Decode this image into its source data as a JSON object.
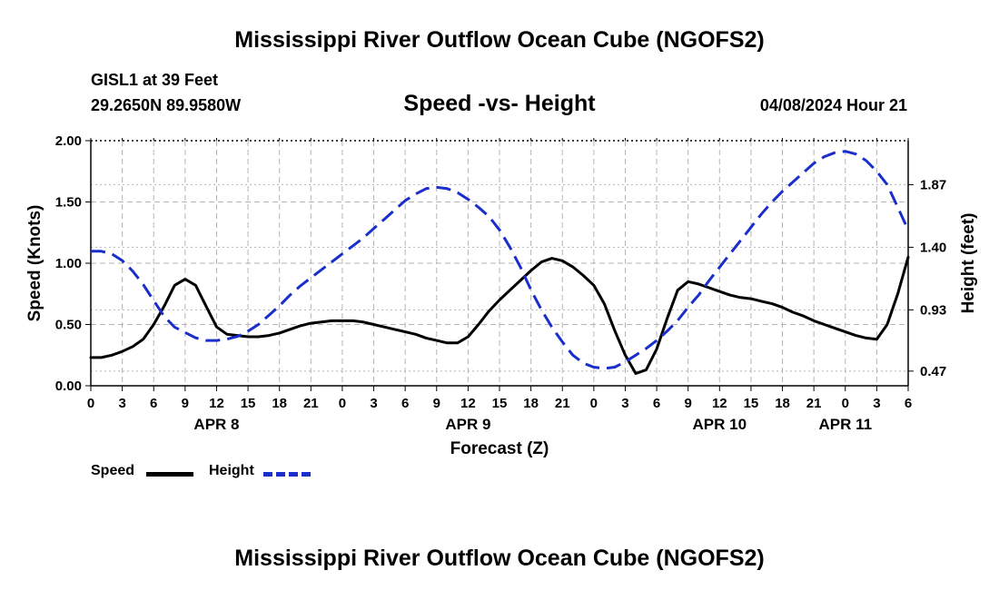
{
  "header": {
    "title": "Mississippi River Outflow Ocean Cube (NGOFS2)",
    "station": "GISL1 at 39 Feet",
    "coords": "29.2650N  89.9580W",
    "subtitle": "Speed -vs- Height",
    "datetime": "04/08/2024 Hour 21"
  },
  "footer": {
    "title": "Mississippi River Outflow Ocean Cube (NGOFS2)"
  },
  "legend": {
    "speed_label": "Speed",
    "height_label": "Height"
  },
  "colors": {
    "speed": "#000000",
    "height": "#1a2ecc",
    "grid": "#b4b4b4"
  },
  "chart_data": {
    "type": "line",
    "title": "Speed -vs- Height",
    "xlabel": "Forecast (Z)",
    "ylabel": "Speed (Knots)",
    "y2label": "Height (feet)",
    "x_hours_range": [
      0,
      78
    ],
    "ylim": [
      0,
      2.0
    ],
    "y_ticks": [
      "0.00",
      "0.50",
      "1.00",
      "1.50",
      "2.00"
    ],
    "y2lim": [
      0.36,
      2.2
    ],
    "y2_ticks": [
      "0.47",
      "0.93",
      "1.40",
      "1.87"
    ],
    "y2_tick_values": [
      0.47,
      0.93,
      1.4,
      1.87
    ],
    "x_tick_labels": [
      "0",
      "3",
      "6",
      "9",
      "12",
      "15",
      "18",
      "21",
      "0",
      "3",
      "6",
      "9",
      "12",
      "15",
      "18",
      "21",
      "0",
      "3",
      "6",
      "9",
      "12",
      "15",
      "18",
      "21",
      "0",
      "3",
      "6"
    ],
    "day_labels": [
      {
        "label": "APR 8",
        "hour": 12
      },
      {
        "label": "APR 9",
        "hour": 36
      },
      {
        "label": "APR 10",
        "hour": 60
      },
      {
        "label": "APR 11",
        "hour": 72
      }
    ],
    "series": [
      {
        "name": "Speed",
        "axis": "left",
        "x": [
          0,
          1,
          2,
          3,
          4,
          5,
          6,
          7,
          8,
          9,
          10,
          11,
          12,
          13,
          14,
          15,
          16,
          17,
          18,
          19,
          20,
          21,
          22,
          23,
          24,
          25,
          26,
          27,
          28,
          29,
          30,
          31,
          32,
          33,
          34,
          35,
          36,
          37,
          38,
          39,
          40,
          41,
          42,
          43,
          44,
          45,
          46,
          47,
          48,
          49,
          50,
          51,
          52,
          53,
          54,
          55,
          56,
          57,
          58,
          59,
          60,
          61,
          62,
          63,
          64,
          65,
          66,
          67,
          68,
          69,
          70,
          71,
          72,
          73,
          74,
          75,
          76,
          77,
          78
        ],
        "values": [
          0.23,
          0.23,
          0.25,
          0.28,
          0.32,
          0.38,
          0.5,
          0.65,
          0.82,
          0.87,
          0.82,
          0.65,
          0.48,
          0.42,
          0.41,
          0.4,
          0.4,
          0.41,
          0.43,
          0.46,
          0.49,
          0.51,
          0.52,
          0.53,
          0.53,
          0.53,
          0.52,
          0.5,
          0.48,
          0.46,
          0.44,
          0.42,
          0.39,
          0.37,
          0.35,
          0.35,
          0.4,
          0.5,
          0.61,
          0.7,
          0.78,
          0.86,
          0.94,
          1.01,
          1.04,
          1.02,
          0.97,
          0.9,
          0.82,
          0.67,
          0.45,
          0.25,
          0.1,
          0.13,
          0.3,
          0.55,
          0.78,
          0.85,
          0.83,
          0.8,
          0.77,
          0.74,
          0.72,
          0.71,
          0.69,
          0.67,
          0.64,
          0.6,
          0.57,
          0.53,
          0.5,
          0.47,
          0.44,
          0.41,
          0.39,
          0.38,
          0.5,
          0.75,
          1.05
        ]
      },
      {
        "name": "Height",
        "axis": "right",
        "x": [
          0,
          1,
          2,
          3,
          4,
          5,
          6,
          7,
          8,
          9,
          10,
          11,
          12,
          13,
          14,
          15,
          16,
          17,
          18,
          19,
          20,
          21,
          22,
          23,
          24,
          25,
          26,
          27,
          28,
          29,
          30,
          31,
          32,
          33,
          34,
          35,
          36,
          37,
          38,
          39,
          40,
          41,
          42,
          43,
          44,
          45,
          46,
          47,
          48,
          49,
          50,
          51,
          52,
          53,
          54,
          55,
          56,
          57,
          58,
          59,
          60,
          61,
          62,
          63,
          64,
          65,
          66,
          67,
          68,
          69,
          70,
          71,
          72,
          73,
          74,
          75,
          76,
          77,
          78
        ],
        "values": [
          1.37,
          1.37,
          1.35,
          1.3,
          1.22,
          1.12,
          1.0,
          0.88,
          0.8,
          0.76,
          0.72,
          0.7,
          0.7,
          0.71,
          0.73,
          0.77,
          0.82,
          0.89,
          0.96,
          1.04,
          1.11,
          1.17,
          1.23,
          1.29,
          1.35,
          1.41,
          1.47,
          1.54,
          1.61,
          1.68,
          1.75,
          1.8,
          1.84,
          1.85,
          1.84,
          1.81,
          1.76,
          1.7,
          1.63,
          1.53,
          1.4,
          1.25,
          1.08,
          0.93,
          0.8,
          0.69,
          0.59,
          0.53,
          0.5,
          0.49,
          0.5,
          0.54,
          0.59,
          0.64,
          0.7,
          0.77,
          0.85,
          0.95,
          1.04,
          1.15,
          1.25,
          1.35,
          1.45,
          1.55,
          1.65,
          1.74,
          1.82,
          1.89,
          1.96,
          2.03,
          2.08,
          2.11,
          2.12,
          2.1,
          2.05,
          1.97,
          1.87,
          1.7,
          1.53
        ]
      }
    ]
  }
}
